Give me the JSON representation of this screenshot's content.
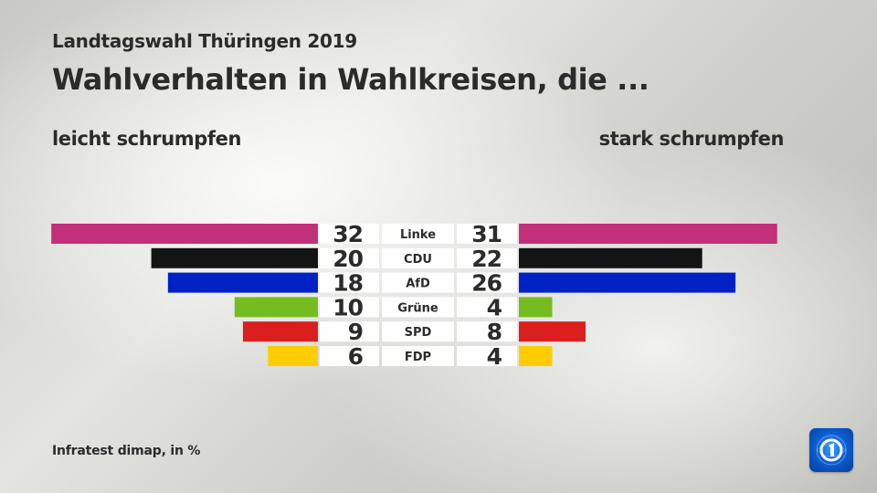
{
  "header": {
    "subtitle": "Landtagswahl Thüringen 2019",
    "title": "Wahlverhalten in Wahlkreisen, die ..."
  },
  "footer": {
    "source": "Infratest dimap, in %",
    "logo": "ard-tagesschau-logo-icon"
  },
  "chart_data": {
    "type": "bar",
    "orientation": "horizontal-butterfly",
    "title": "Wahlverhalten in Wahlkreisen, die ...",
    "subtitle": "Landtagswahl Thüringen 2019",
    "unit": "%",
    "categories": [
      "Linke",
      "CDU",
      "AfD",
      "Grüne",
      "SPD",
      "FDP"
    ],
    "colors": [
      "#c0317a",
      "#141414",
      "#0021c4",
      "#76bc21",
      "#da1f1f",
      "#ffcc00"
    ],
    "series": [
      {
        "name": "leicht schrumpfen",
        "side": "left",
        "values": [
          32,
          20,
          18,
          10,
          9,
          6
        ]
      },
      {
        "name": "stark schrumpfen",
        "side": "right",
        "values": [
          31,
          22,
          26,
          4,
          8,
          4
        ]
      }
    ],
    "xlim": [
      0,
      32
    ],
    "grid": false,
    "legend": "none"
  }
}
